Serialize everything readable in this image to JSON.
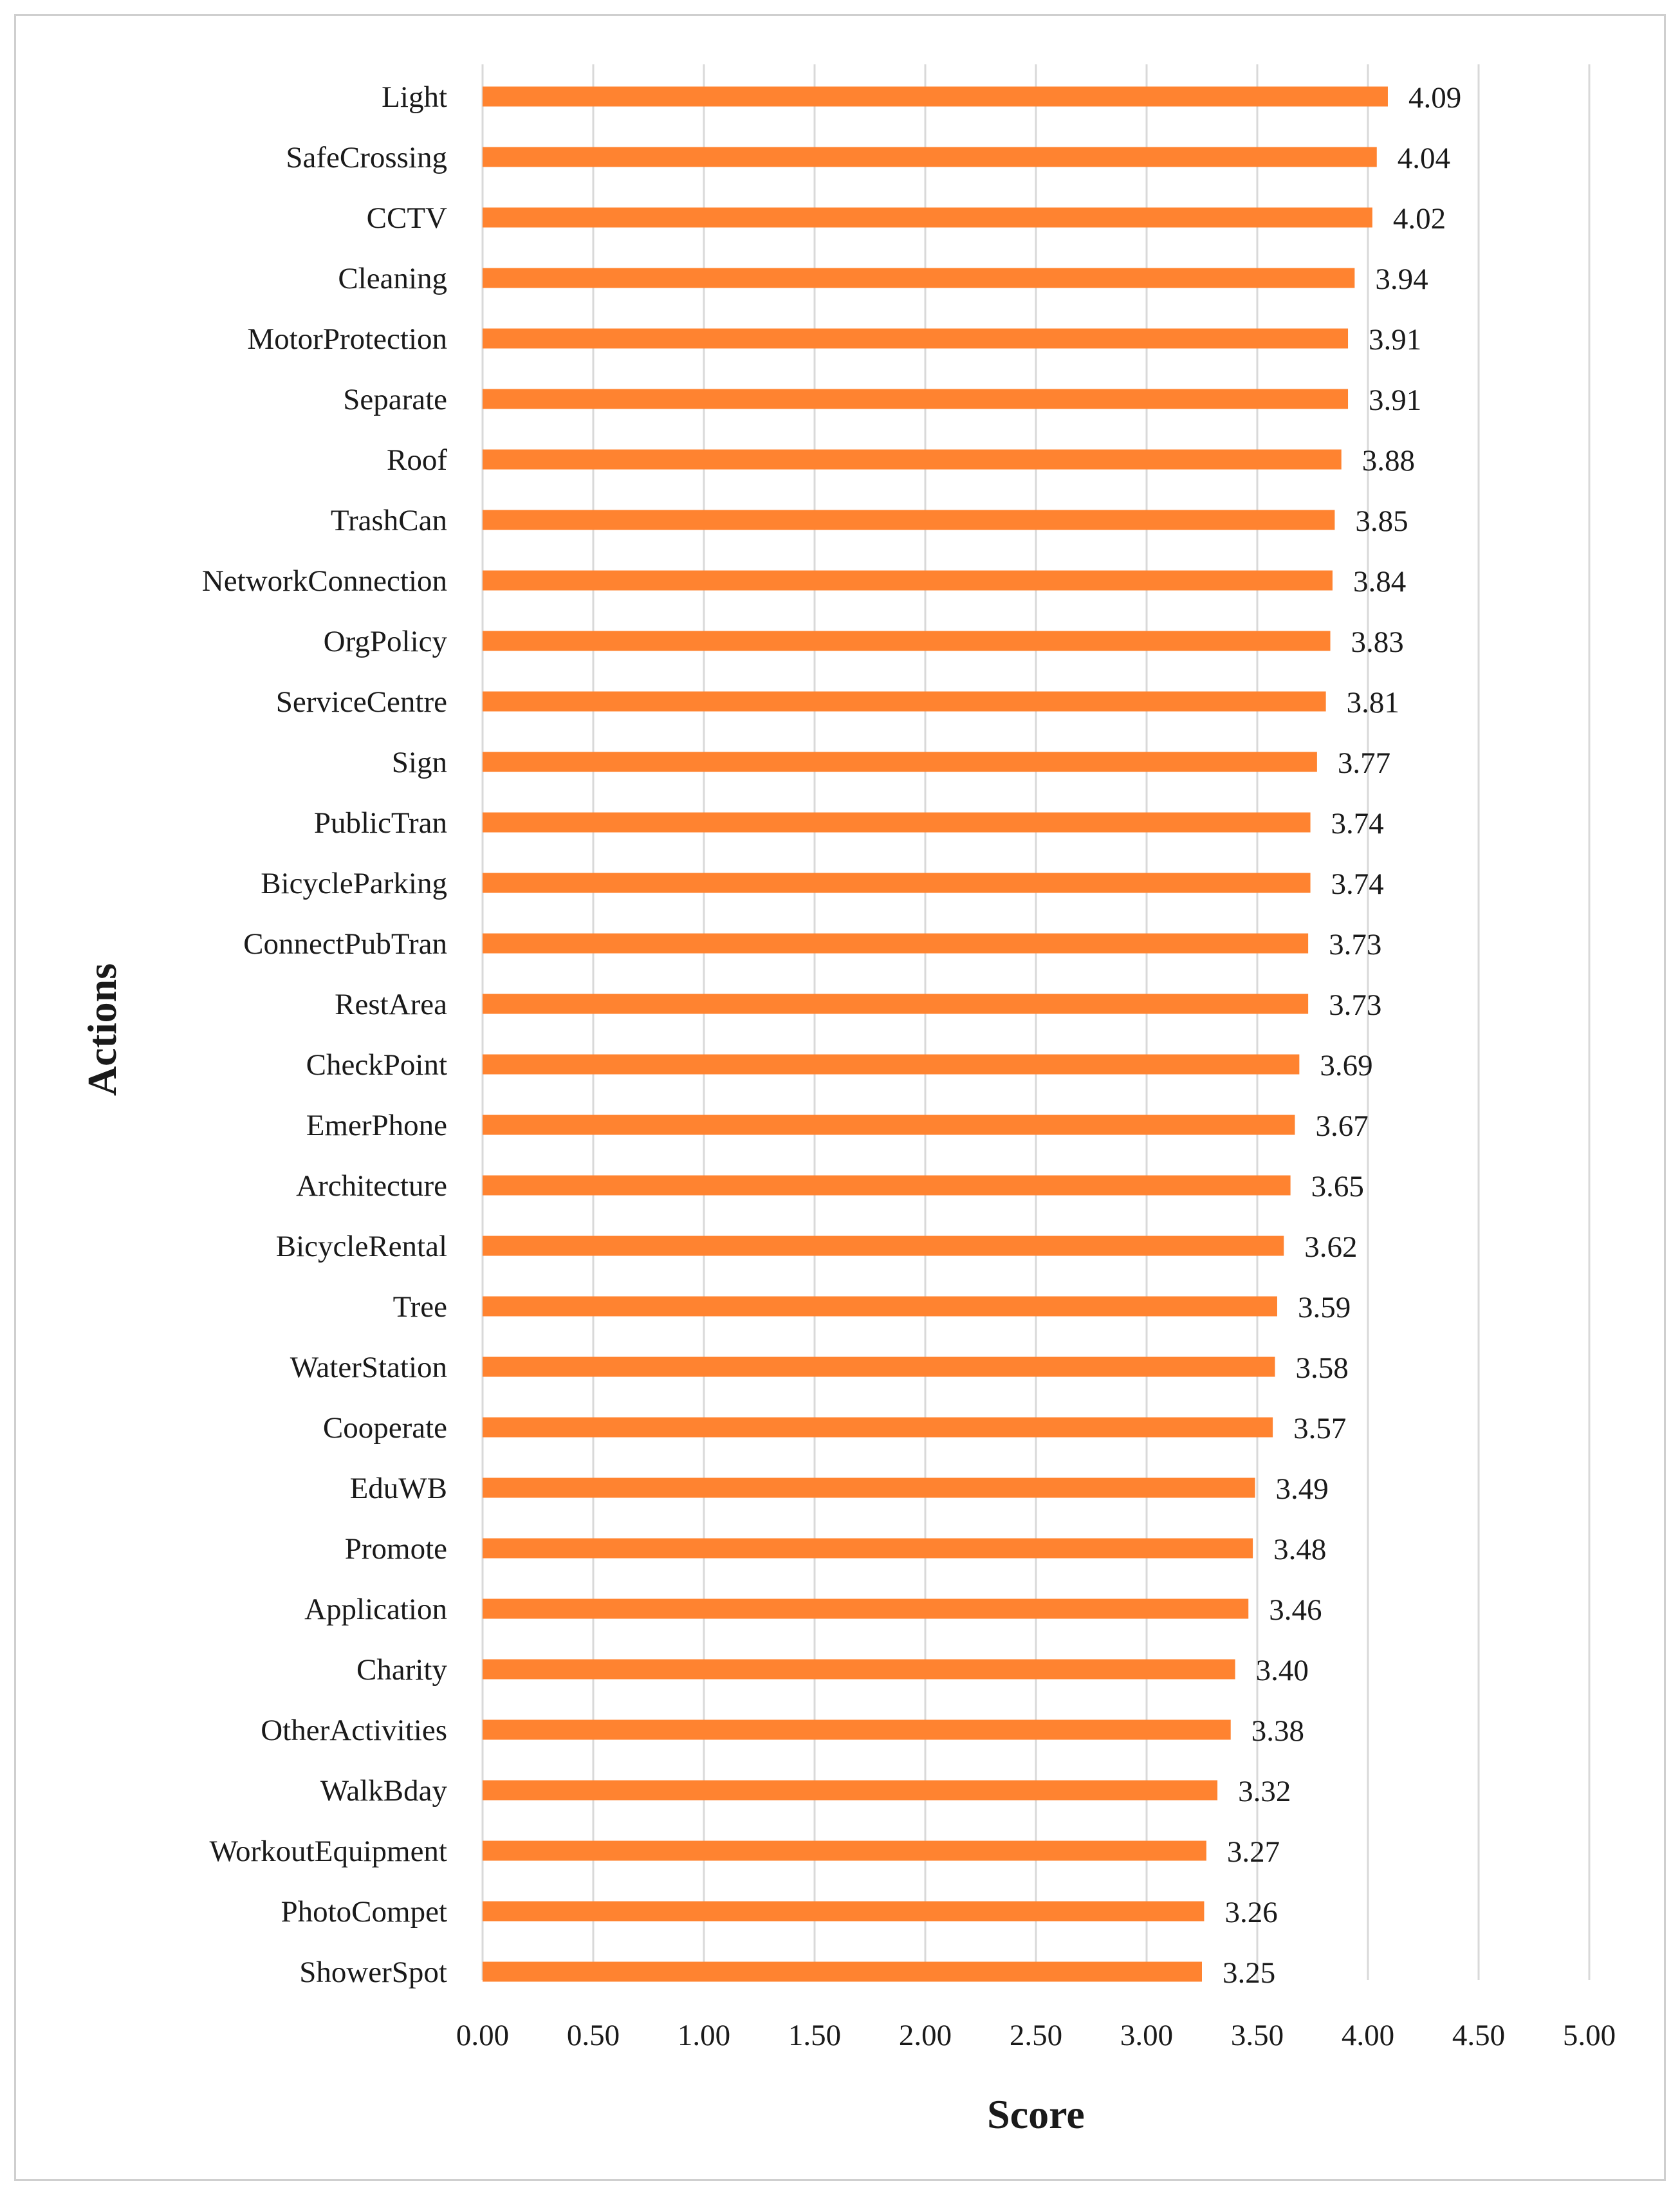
{
  "chart_data": {
    "type": "bar",
    "orientation": "horizontal",
    "title": "",
    "xlabel": "Score",
    "ylabel": "Actions",
    "xlim": [
      0,
      5
    ],
    "x_ticks": [
      "0.00",
      "0.50",
      "1.00",
      "1.50",
      "2.00",
      "2.50",
      "3.00",
      "3.50",
      "4.00",
      "4.50",
      "5.00"
    ],
    "grid": "vertical",
    "bar_color": "#FF8330",
    "categories": [
      "Light",
      "SafeCrossing",
      "CCTV",
      "Cleaning",
      "MotorProtection",
      "Separate",
      "Roof",
      "TrashCan",
      "NetworkConnection",
      "OrgPolicy",
      "ServiceCentre",
      "Sign",
      "PublicTran",
      "BicycleParking",
      "ConnectPubTran",
      "RestArea",
      "CheckPoint",
      "EmerPhone",
      "Architecture",
      "BicycleRental",
      "Tree",
      "WaterStation",
      "Cooperate",
      "EduWB",
      "Promote",
      "Application",
      "Charity",
      "OtherActivities",
      "WalkBday",
      "WorkoutEquipment",
      "PhotoCompet",
      "ShowerSpot"
    ],
    "values": [
      4.09,
      4.04,
      4.02,
      3.94,
      3.91,
      3.91,
      3.88,
      3.85,
      3.84,
      3.83,
      3.81,
      3.77,
      3.74,
      3.74,
      3.73,
      3.73,
      3.69,
      3.67,
      3.65,
      3.62,
      3.59,
      3.58,
      3.57,
      3.49,
      3.48,
      3.46,
      3.4,
      3.38,
      3.32,
      3.27,
      3.26,
      3.25
    ],
    "value_labels": [
      "4.09",
      "4.04",
      "4.02",
      "3.94",
      "3.91",
      "3.91",
      "3.88",
      "3.85",
      "3.84",
      "3.83",
      "3.81",
      "3.77",
      "3.74",
      "3.74",
      "3.73",
      "3.73",
      "3.69",
      "3.67",
      "3.65",
      "3.62",
      "3.59",
      "3.58",
      "3.57",
      "3.49",
      "3.48",
      "3.46",
      "3.40",
      "3.38",
      "3.32",
      "3.27",
      "3.26",
      "3.25"
    ]
  }
}
